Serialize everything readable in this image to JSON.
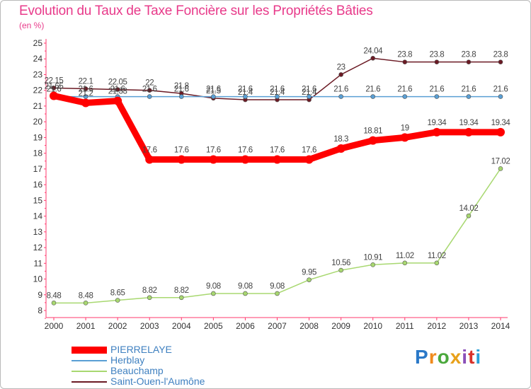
{
  "header": {
    "title": "Evolution du Taux de Taxe Foncière sur les Propriétés Bâties",
    "unit": "(en %)"
  },
  "logo": {
    "text": "Proxiti",
    "colors": [
      "#2a78c8",
      "#f08a1c",
      "#4aa83c",
      "#e8a11a",
      "#8a4fb8",
      "#d8322a",
      "#2aa0d8"
    ]
  },
  "chart_data": {
    "type": "line",
    "x": [
      2000,
      2001,
      2002,
      2003,
      2004,
      2005,
      2006,
      2007,
      2008,
      2009,
      2010,
      2011,
      2012,
      2013,
      2014
    ],
    "xlabels": [
      "2000",
      "2001",
      "2002",
      "2003",
      "2004",
      "2005",
      "2006",
      "2007",
      "2008",
      "2009",
      "2010",
      "2011",
      "2012",
      "2013",
      "2014"
    ],
    "ylim": [
      8,
      25
    ],
    "yticks": [
      8,
      9,
      10,
      11,
      12,
      13,
      14,
      15,
      16,
      17,
      18,
      19,
      20,
      21,
      22,
      23,
      24,
      25
    ],
    "grid": false,
    "legend_position": "bottom-left",
    "series": [
      {
        "name": "Saint-Ouen-l'Aumône",
        "color": "#6b1a24",
        "width": 1.5,
        "values": [
          22.15,
          22.1,
          22.05,
          22,
          21.8,
          21.5,
          21.4,
          21.4,
          21.4,
          23,
          24.04,
          23.8,
          23.8,
          23.8,
          23.8
        ],
        "labels": [
          "22.15",
          "22.1",
          "22.05",
          "22",
          "21.8",
          "21.5",
          "21.4",
          "21.4",
          "21.4",
          "23",
          "24.04",
          "23.8",
          "23.8",
          "23.8",
          "23.8"
        ]
      },
      {
        "name": "Herblay",
        "color": "#5a9fd4",
        "width": 1.5,
        "values": [
          21.6,
          21.6,
          21.6,
          21.6,
          21.6,
          21.6,
          21.6,
          21.6,
          21.6,
          21.6,
          21.6,
          21.6,
          21.6,
          21.6,
          21.6
        ],
        "labels": [
          "21.6",
          "21.6",
          "21.6",
          "21.6",
          "21.6",
          "21.6",
          "21.6",
          "21.6",
          "21.6",
          "21.6",
          "21.6",
          "21.6",
          "21.6",
          "21.6",
          "21.6"
        ]
      },
      {
        "name": "Beauchamp",
        "color": "#a8d870",
        "width": 1.5,
        "values": [
          8.48,
          8.48,
          8.65,
          8.82,
          8.82,
          9.08,
          9.08,
          9.08,
          9.95,
          10.56,
          10.91,
          11.02,
          11.02,
          14.02,
          17.02
        ],
        "labels": [
          "8.48",
          "8.48",
          "8.65",
          "8.82",
          "8.82",
          "9.08",
          "9.08",
          "9.08",
          "9.95",
          "10.56",
          "10.91",
          "11.02",
          "11.02",
          "14.02",
          "17.02"
        ]
      },
      {
        "name": "PIERRELAYE",
        "color": "#ff0000",
        "width": 9,
        "values": [
          21.65,
          21.2,
          21.33,
          17.6,
          17.6,
          17.6,
          17.6,
          17.6,
          17.6,
          18.3,
          18.81,
          19,
          19.34,
          19.34,
          19.34
        ],
        "labels": [
          "21.65",
          "21.2",
          "21.33",
          "17.6",
          "17.6",
          "17.6",
          "17.6",
          "17.6",
          "17.6",
          "18.3",
          "18.81",
          "19",
          "19.34",
          "19.34",
          "19.34"
        ]
      }
    ],
    "legend_order": [
      "PIERRELAYE",
      "Herblay",
      "Beauchamp",
      "Saint-Ouen-l'Aumône"
    ]
  }
}
